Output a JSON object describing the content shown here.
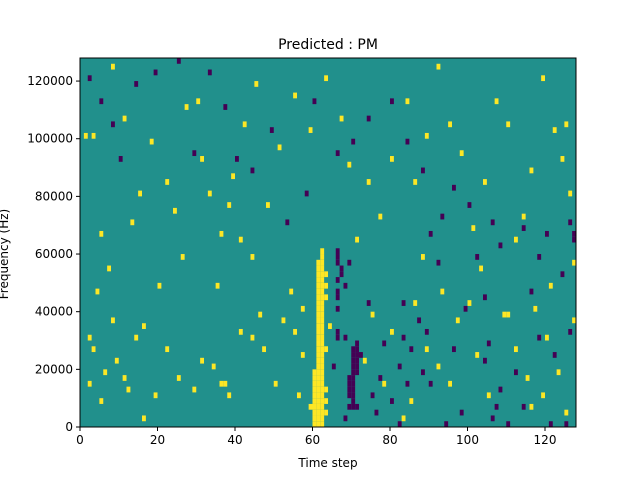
{
  "chart_data": {
    "type": "heatmap",
    "title": "Predicted : PM",
    "xlabel": "Time step",
    "ylabel": "Frequency (Hz)",
    "xlim": [
      0,
      128
    ],
    "ylim": [
      0,
      128000
    ],
    "xticks": [
      0,
      20,
      40,
      60,
      80,
      100,
      120
    ],
    "yticks": [
      0,
      20000,
      40000,
      60000,
      80000,
      100000,
      120000
    ],
    "ytick_labels": [
      "0",
      "20000",
      "40000",
      "60000",
      "80000",
      "100000",
      "120000"
    ],
    "grid": false,
    "legend": "none",
    "colormap": "viridis",
    "colors": {
      "background": "#21908c",
      "high": "#fde725",
      "low": "#440154"
    },
    "value_levels": {
      "low": -1,
      "background": 0,
      "high": 1
    },
    "cell_size": {
      "time_steps": 1,
      "frequency_hz": 2000
    },
    "cells_note": "each cell: [time_step, frequency_hz_lower_edge, level]",
    "cells": [
      [
        60,
        0,
        1
      ],
      [
        61,
        0,
        1
      ],
      [
        62,
        0,
        1
      ],
      [
        60,
        2000,
        1
      ],
      [
        61,
        2000,
        1
      ],
      [
        62,
        2000,
        1
      ],
      [
        60,
        4000,
        1
      ],
      [
        61,
        4000,
        1
      ],
      [
        62,
        4000,
        1
      ],
      [
        60,
        6000,
        1
      ],
      [
        61,
        6000,
        1
      ],
      [
        62,
        6000,
        1
      ],
      [
        60,
        8000,
        1
      ],
      [
        61,
        8000,
        1
      ],
      [
        62,
        8000,
        1
      ],
      [
        60,
        10000,
        1
      ],
      [
        61,
        10000,
        1
      ],
      [
        62,
        10000,
        1
      ],
      [
        60,
        12000,
        1
      ],
      [
        61,
        12000,
        1
      ],
      [
        62,
        12000,
        1
      ],
      [
        60,
        14000,
        1
      ],
      [
        61,
        14000,
        1
      ],
      [
        62,
        14000,
        1
      ],
      [
        60,
        16000,
        1
      ],
      [
        61,
        16000,
        1
      ],
      [
        62,
        16000,
        1
      ],
      [
        60,
        18000,
        1
      ],
      [
        61,
        18000,
        1
      ],
      [
        62,
        18000,
        1
      ],
      [
        61,
        20000,
        1
      ],
      [
        62,
        20000,
        1
      ],
      [
        61,
        22000,
        1
      ],
      [
        62,
        22000,
        1
      ],
      [
        61,
        24000,
        1
      ],
      [
        62,
        24000,
        1
      ],
      [
        61,
        26000,
        1
      ],
      [
        62,
        26000,
        1
      ],
      [
        61,
        28000,
        1
      ],
      [
        62,
        28000,
        1
      ],
      [
        61,
        30000,
        1
      ],
      [
        62,
        30000,
        1
      ],
      [
        61,
        32000,
        1
      ],
      [
        62,
        32000,
        1
      ],
      [
        61,
        34000,
        1
      ],
      [
        62,
        34000,
        1
      ],
      [
        61,
        36000,
        1
      ],
      [
        62,
        36000,
        1
      ],
      [
        61,
        38000,
        1
      ],
      [
        62,
        38000,
        1
      ],
      [
        61,
        40000,
        1
      ],
      [
        62,
        40000,
        1
      ],
      [
        61,
        42000,
        1
      ],
      [
        62,
        42000,
        1
      ],
      [
        61,
        44000,
        1
      ],
      [
        62,
        44000,
        1
      ],
      [
        61,
        46000,
        1
      ],
      [
        62,
        46000,
        1
      ],
      [
        61,
        48000,
        1
      ],
      [
        62,
        48000,
        1
      ],
      [
        61,
        50000,
        1
      ],
      [
        62,
        50000,
        1
      ],
      [
        61,
        52000,
        1
      ],
      [
        62,
        52000,
        1
      ],
      [
        61,
        54000,
        1
      ],
      [
        62,
        54000,
        1
      ],
      [
        61,
        56000,
        1
      ],
      [
        62,
        56000,
        1
      ],
      [
        62,
        58000,
        1
      ],
      [
        62,
        60000,
        1
      ],
      [
        63,
        4000,
        1
      ],
      [
        63,
        8000,
        1
      ],
      [
        63,
        12000,
        1
      ],
      [
        63,
        26000,
        1
      ],
      [
        63,
        44000,
        1
      ],
      [
        63,
        48000,
        1
      ],
      [
        63,
        52000,
        1
      ],
      [
        69,
        10000,
        -1
      ],
      [
        70,
        10000,
        -1
      ],
      [
        69,
        12000,
        -1
      ],
      [
        70,
        12000,
        -1
      ],
      [
        69,
        14000,
        -1
      ],
      [
        70,
        14000,
        -1
      ],
      [
        69,
        16000,
        -1
      ],
      [
        70,
        16000,
        -1
      ],
      [
        70,
        18000,
        -1
      ],
      [
        71,
        18000,
        -1
      ],
      [
        70,
        20000,
        -1
      ],
      [
        71,
        20000,
        -1
      ],
      [
        70,
        22000,
        -1
      ],
      [
        71,
        22000,
        -1
      ],
      [
        70,
        24000,
        -1
      ],
      [
        71,
        24000,
        -1
      ],
      [
        70,
        26000,
        -1
      ],
      [
        71,
        26000,
        -1
      ],
      [
        70,
        6000,
        -1
      ],
      [
        71,
        6000,
        -1
      ],
      [
        70,
        8000,
        -1
      ],
      [
        66,
        30000,
        -1
      ],
      [
        66,
        32000,
        -1
      ],
      [
        66,
        40000,
        -1
      ],
      [
        66,
        44000,
        -1
      ],
      [
        66,
        46000,
        -1
      ],
      [
        66,
        50000,
        -1
      ],
      [
        66,
        56000,
        -1
      ],
      [
        66,
        58000,
        -1
      ],
      [
        66,
        60000,
        -1
      ],
      [
        67,
        52000,
        -1
      ],
      [
        67,
        54000,
        -1
      ],
      [
        68,
        48000,
        -1
      ],
      [
        69,
        56000,
        -1
      ],
      [
        65,
        20000,
        -1
      ],
      [
        69,
        6000,
        -1
      ],
      [
        68,
        2000,
        -1
      ],
      [
        72,
        24000,
        -1
      ],
      [
        71,
        28000,
        -1
      ],
      [
        68,
        30000,
        -1
      ],
      [
        74,
        42000,
        -1
      ],
      [
        75,
        10000,
        -1
      ],
      [
        76,
        4000,
        -1
      ],
      [
        77,
        16000,
        -1
      ],
      [
        78,
        28000,
        -1
      ],
      [
        80,
        8000,
        -1
      ],
      [
        82,
        0,
        -1
      ],
      [
        82,
        20000,
        -1
      ],
      [
        83,
        30000,
        -1
      ],
      [
        83,
        42000,
        -1
      ],
      [
        84,
        14000,
        -1
      ],
      [
        85,
        26000,
        -1
      ],
      [
        87,
        36000,
        -1
      ],
      [
        88,
        18000,
        -1
      ],
      [
        89,
        32000,
        -1
      ],
      [
        90,
        14000,
        -1
      ],
      [
        94,
        0,
        -1
      ],
      [
        96,
        26000,
        -1
      ],
      [
        98,
        4000,
        -1
      ],
      [
        99,
        40000,
        -1
      ],
      [
        104,
        44000,
        -1
      ],
      [
        104,
        22000,
        -1
      ],
      [
        105,
        28000,
        -1
      ],
      [
        106,
        2000,
        -1
      ],
      [
        107,
        6000,
        -1
      ],
      [
        108,
        12000,
        -1
      ],
      [
        110,
        0,
        -1
      ],
      [
        112,
        18000,
        -1
      ],
      [
        114,
        6000,
        -1
      ],
      [
        116,
        46000,
        -1
      ],
      [
        118,
        30000,
        -1
      ],
      [
        121,
        0,
        -1
      ],
      [
        122,
        24000,
        -1
      ],
      [
        125,
        0,
        -1
      ],
      [
        126,
        32000,
        -1
      ],
      [
        127,
        64000,
        -1
      ],
      [
        127,
        66000,
        -1
      ],
      [
        126,
        70000,
        -1
      ],
      [
        120,
        66000,
        -1
      ],
      [
        114,
        68000,
        -1
      ],
      [
        106,
        70000,
        -1
      ],
      [
        102,
        58000,
        -1
      ],
      [
        100,
        76000,
        -1
      ],
      [
        96,
        82000,
        -1
      ],
      [
        93,
        72000,
        -1
      ],
      [
        90,
        66000,
        -1
      ],
      [
        88,
        88000,
        -1
      ],
      [
        84,
        98000,
        -1
      ],
      [
        80,
        112000,
        -1
      ],
      [
        74,
        106000,
        -1
      ],
      [
        70,
        98000,
        -1
      ],
      [
        66,
        94000,
        -1
      ],
      [
        60,
        112000,
        -1
      ],
      [
        58,
        80000,
        -1
      ],
      [
        53,
        70000,
        -1
      ],
      [
        49,
        102000,
        -1
      ],
      [
        44,
        88000,
        -1
      ],
      [
        40,
        92000,
        -1
      ],
      [
        37,
        110000,
        -1
      ],
      [
        33,
        122000,
        -1
      ],
      [
        29,
        94000,
        -1
      ],
      [
        25,
        126000,
        -1
      ],
      [
        19,
        122000,
        -1
      ],
      [
        14,
        118000,
        -1
      ],
      [
        10,
        92000,
        -1
      ],
      [
        8,
        104000,
        -1
      ],
      [
        5,
        112000,
        -1
      ],
      [
        2,
        120000,
        -1
      ],
      [
        92,
        56000,
        -1
      ],
      [
        108,
        62000,
        -1
      ],
      [
        118,
        58000,
        -1
      ],
      [
        124,
        52000,
        -1
      ],
      [
        2,
        14000,
        1
      ],
      [
        2,
        30000,
        1
      ],
      [
        3,
        26000,
        1
      ],
      [
        4,
        46000,
        1
      ],
      [
        5,
        8000,
        1
      ],
      [
        6,
        18000,
        1
      ],
      [
        8,
        36000,
        1
      ],
      [
        9,
        22000,
        1
      ],
      [
        11,
        16000,
        1
      ],
      [
        12,
        12000,
        1
      ],
      [
        14,
        30000,
        1
      ],
      [
        16,
        2000,
        1
      ],
      [
        19,
        10000,
        1
      ],
      [
        22,
        26000,
        1
      ],
      [
        25,
        16000,
        1
      ],
      [
        29,
        12000,
        1
      ],
      [
        31,
        22000,
        1
      ],
      [
        34,
        20000,
        1
      ],
      [
        36,
        14000,
        1
      ],
      [
        37,
        14000,
        1
      ],
      [
        38,
        10000,
        1
      ],
      [
        41,
        32000,
        1
      ],
      [
        44,
        30000,
        1
      ],
      [
        47,
        26000,
        1
      ],
      [
        50,
        14000,
        1
      ],
      [
        52,
        36000,
        1
      ],
      [
        55,
        32000,
        1
      ],
      [
        56,
        10000,
        1
      ],
      [
        57,
        40000,
        1
      ],
      [
        59,
        6000,
        1
      ],
      [
        64,
        34000,
        1
      ],
      [
        73,
        22000,
        1
      ],
      [
        75,
        38000,
        1
      ],
      [
        78,
        14000,
        1
      ],
      [
        80,
        32000,
        1
      ],
      [
        83,
        2000,
        1
      ],
      [
        85,
        8000,
        1
      ],
      [
        86,
        42000,
        1
      ],
      [
        89,
        26000,
        1
      ],
      [
        92,
        20000,
        1
      ],
      [
        95,
        14000,
        1
      ],
      [
        97,
        36000,
        1
      ],
      [
        100,
        42000,
        1
      ],
      [
        102,
        24000,
        1
      ],
      [
        105,
        10000,
        1
      ],
      [
        109,
        38000,
        1
      ],
      [
        110,
        38000,
        1
      ],
      [
        112,
        26000,
        1
      ],
      [
        115,
        16000,
        1
      ],
      [
        116,
        6000,
        1
      ],
      [
        117,
        40000,
        1
      ],
      [
        119,
        10000,
        1
      ],
      [
        120,
        30000,
        1
      ],
      [
        123,
        18000,
        1
      ],
      [
        125,
        4000,
        1
      ],
      [
        127,
        36000,
        1
      ],
      [
        127,
        56000,
        1
      ],
      [
        126,
        80000,
        1
      ],
      [
        124,
        92000,
        1
      ],
      [
        122,
        102000,
        1
      ],
      [
        119,
        120000,
        1
      ],
      [
        116,
        88000,
        1
      ],
      [
        114,
        72000,
        1
      ],
      [
        110,
        104000,
        1
      ],
      [
        107,
        112000,
        1
      ],
      [
        104,
        84000,
        1
      ],
      [
        101,
        68000,
        1
      ],
      [
        98,
        94000,
        1
      ],
      [
        95,
        104000,
        1
      ],
      [
        92,
        124000,
        1
      ],
      [
        89,
        100000,
        1
      ],
      [
        86,
        84000,
        1
      ],
      [
        84,
        112000,
        1
      ],
      [
        80,
        92000,
        1
      ],
      [
        77,
        72000,
        1
      ],
      [
        74,
        84000,
        1
      ],
      [
        71,
        64000,
        1
      ],
      [
        69,
        90000,
        1
      ],
      [
        67,
        106000,
        1
      ],
      [
        63,
        120000,
        1
      ],
      [
        59,
        102000,
        1
      ],
      [
        55,
        114000,
        1
      ],
      [
        51,
        96000,
        1
      ],
      [
        48,
        76000,
        1
      ],
      [
        45,
        118000,
        1
      ],
      [
        42,
        104000,
        1
      ],
      [
        39,
        86000,
        1
      ],
      [
        36,
        66000,
        1
      ],
      [
        33,
        80000,
        1
      ],
      [
        31,
        92000,
        1
      ],
      [
        27,
        110000,
        1
      ],
      [
        24,
        74000,
        1
      ],
      [
        22,
        84000,
        1
      ],
      [
        18,
        98000,
        1
      ],
      [
        15,
        80000,
        1
      ],
      [
        13,
        70000,
        1
      ],
      [
        11,
        106000,
        1
      ],
      [
        8,
        124000,
        1
      ],
      [
        5,
        66000,
        1
      ],
      [
        3,
        100000,
        1
      ],
      [
        1,
        100000,
        1
      ],
      [
        46,
        38000,
        1
      ],
      [
        54,
        46000,
        1
      ],
      [
        57,
        24000,
        1
      ],
      [
        44,
        58000,
        1
      ],
      [
        41,
        64000,
        1
      ],
      [
        35,
        48000,
        1
      ],
      [
        38,
        76000,
        1
      ],
      [
        30,
        112000,
        1
      ],
      [
        26,
        58000,
        1
      ],
      [
        20,
        48000,
        1
      ],
      [
        16,
        34000,
        1
      ],
      [
        7,
        54000,
        1
      ],
      [
        88,
        58000,
        1
      ],
      [
        93,
        46000,
        1
      ],
      [
        103,
        54000,
        1
      ],
      [
        112,
        64000,
        1
      ],
      [
        121,
        48000,
        1
      ],
      [
        125,
        104000,
        1
      ]
    ]
  }
}
